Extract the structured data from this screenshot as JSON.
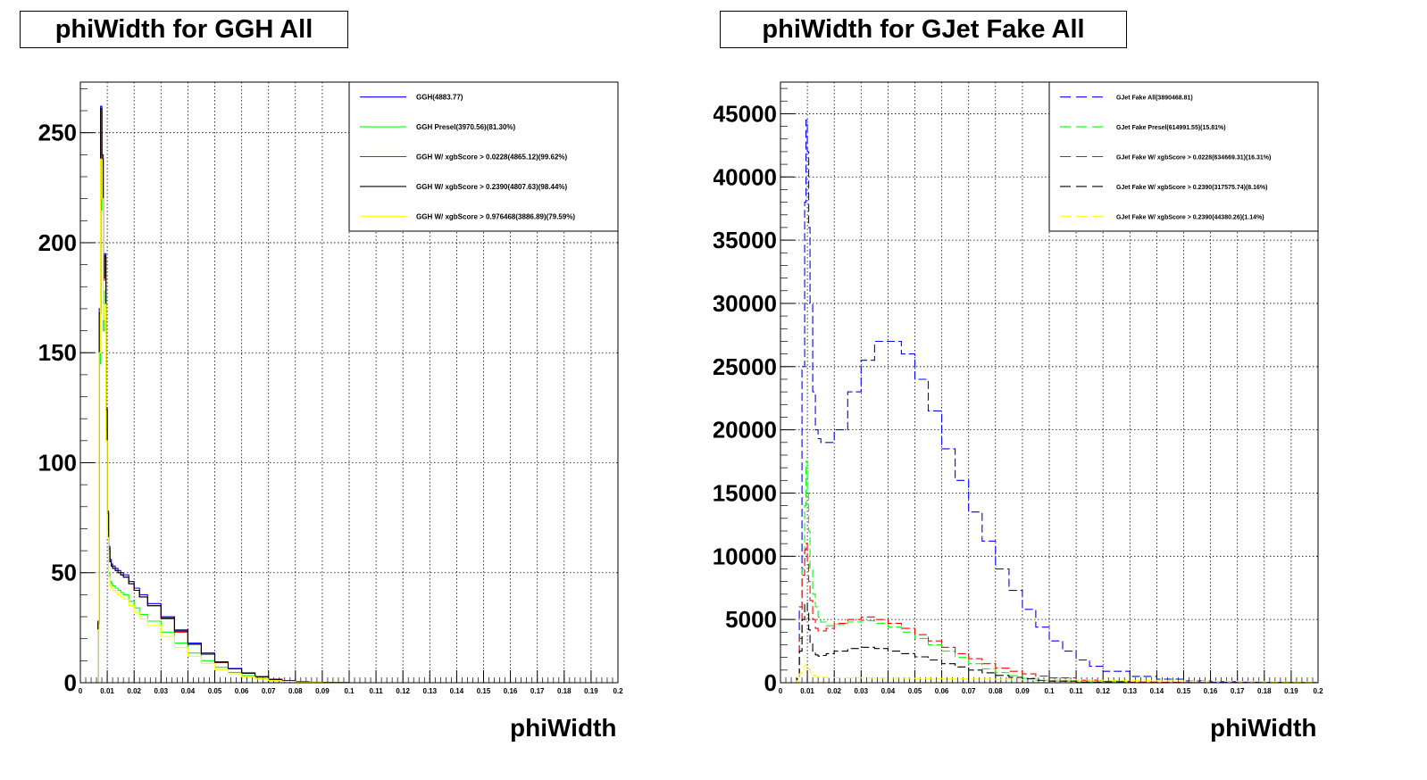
{
  "chart_data": [
    {
      "type": "line",
      "title": "phiWidth for GGH All",
      "xlabel": "phiWidth",
      "ylabel": "",
      "xlim": [
        0,
        0.2
      ],
      "ylim": [
        0,
        273
      ],
      "grid": true,
      "legend_position": "top-right",
      "xticks": [
        "0",
        "0.01",
        "0.02",
        "0.03",
        "0.04",
        "0.05",
        "0.06",
        "0.07",
        "0.08",
        "0.09",
        "0.1",
        "0.11",
        "0.12",
        "0.13",
        "0.14",
        "0.15",
        "0.16",
        "0.17",
        "0.18",
        "0.19",
        "0.2"
      ],
      "yticks": [
        "0",
        "50",
        "100",
        "150",
        "200",
        "250"
      ],
      "series": [
        {
          "name": "GGH(4883.77)",
          "color": "#0000ff",
          "dash": "solid",
          "x": [
            0.005,
            0.0055,
            0.006,
            0.0065,
            0.007,
            0.0075,
            0.008,
            0.0085,
            0.009,
            0.0095,
            0.01,
            0.0105,
            0.011,
            0.0115,
            0.012,
            0.013,
            0.014,
            0.015,
            0.016,
            0.018,
            0.02,
            0.022,
            0.025,
            0.03,
            0.035,
            0.04,
            0.045,
            0.05,
            0.055,
            0.06,
            0.065,
            0.07,
            0.075,
            0.08,
            0.085,
            0.09,
            0.095,
            0.1
          ],
          "y": [
            0,
            0,
            0,
            28,
            170,
            262,
            240,
            185,
            195,
            125,
            78,
            62,
            56,
            54,
            53,
            52,
            51,
            50,
            49,
            46,
            43,
            40,
            36,
            30,
            24,
            18,
            13.5,
            9.5,
            6.5,
            4.5,
            2.8,
            1.6,
            0.9,
            0.5,
            0.25,
            0.1,
            0.05,
            0
          ]
        },
        {
          "name": "GGH Presel(3970.56)(81.30%)",
          "color": "#00ff00",
          "dash": "solid",
          "x": [
            0.005,
            0.0055,
            0.006,
            0.0065,
            0.007,
            0.0075,
            0.008,
            0.0085,
            0.009,
            0.0095,
            0.01,
            0.0105,
            0.011,
            0.0115,
            0.012,
            0.013,
            0.014,
            0.015,
            0.016,
            0.018,
            0.02,
            0.022,
            0.025,
            0.03,
            0.035,
            0.04,
            0.045,
            0.05,
            0.055,
            0.06,
            0.065,
            0.07,
            0.075,
            0.08,
            0.085,
            0.09,
            0.095,
            0.1
          ],
          "y": [
            0,
            0,
            0,
            25,
            145,
            228,
            215,
            160,
            178,
            115,
            70,
            50,
            46,
            45,
            44,
            43,
            42,
            41,
            40,
            37,
            34,
            31,
            28,
            23,
            18,
            13.5,
            10,
            7,
            4.7,
            3.2,
            2,
            1.2,
            0.7,
            0.4,
            0.2,
            0.08,
            0.03,
            0
          ]
        },
        {
          "name": "GGH W/ xgbScore > 0.0228(4865.12)(99.62%)",
          "color": "#ff0000",
          "dash": "solid",
          "x": [
            0.005,
            0.0055,
            0.006,
            0.0065,
            0.007,
            0.0075,
            0.008,
            0.0085,
            0.009,
            0.0095,
            0.01,
            0.0105,
            0.011,
            0.0115,
            0.012,
            0.013,
            0.014,
            0.015,
            0.016,
            0.018,
            0.02,
            0.022,
            0.025,
            0.03,
            0.035,
            0.04,
            0.045,
            0.05,
            0.055,
            0.06,
            0.065,
            0.07,
            0.075,
            0.08,
            0.085,
            0.09,
            0.095,
            0.1
          ],
          "y": [
            0,
            0,
            0,
            27,
            168,
            260,
            238,
            183,
            193,
            124,
            77,
            61,
            55,
            53,
            52,
            51,
            50,
            49,
            48,
            45,
            42,
            39,
            35,
            29,
            23,
            17.5,
            13,
            9.2,
            6.3,
            4.3,
            2.7,
            1.5,
            0.85,
            0.45,
            0.22,
            0.09,
            0.04,
            0
          ]
        },
        {
          "name": "GGH W/ xgbScore > 0.2390(4807.63)(98.44%)",
          "color": "#000000",
          "dash": "solid",
          "x": [
            0.005,
            0.0055,
            0.006,
            0.0065,
            0.007,
            0.0075,
            0.008,
            0.0085,
            0.009,
            0.0095,
            0.01,
            0.0105,
            0.011,
            0.0115,
            0.012,
            0.013,
            0.014,
            0.015,
            0.016,
            0.018,
            0.02,
            0.022,
            0.025,
            0.03,
            0.035,
            0.04,
            0.045,
            0.05,
            0.055,
            0.06,
            0.065,
            0.07,
            0.075,
            0.08,
            0.085,
            0.09,
            0.095,
            0.1
          ],
          "y": [
            0,
            0,
            0,
            27,
            168,
            261,
            238,
            184,
            194,
            124,
            77,
            61,
            55,
            53,
            52,
            51,
            50,
            49,
            48,
            45,
            42,
            39,
            35,
            29.5,
            23.5,
            17.5,
            13,
            9.3,
            6.3,
            4.3,
            2.7,
            1.5,
            0.85,
            0.45,
            0.22,
            0.09,
            0.04,
            0
          ]
        },
        {
          "name": "GGH W/ xgbScore > 0.976468(3886.89)(79.59%)",
          "color": "#ffff00",
          "dash": "solid",
          "x": [
            0.005,
            0.0055,
            0.006,
            0.0065,
            0.007,
            0.0075,
            0.008,
            0.0085,
            0.009,
            0.0095,
            0.01,
            0.0105,
            0.011,
            0.0115,
            0.012,
            0.013,
            0.014,
            0.015,
            0.016,
            0.018,
            0.02,
            0.022,
            0.025,
            0.03,
            0.035,
            0.04,
            0.045,
            0.05,
            0.055,
            0.06,
            0.065,
            0.07,
            0.075,
            0.08,
            0.085,
            0.09,
            0.095,
            0.1
          ],
          "y": [
            0,
            0,
            0,
            24,
            150,
            238,
            220,
            165,
            172,
            110,
            66,
            48,
            44,
            43,
            42,
            41,
            40,
            39,
            38,
            35,
            32,
            29,
            26,
            21,
            16,
            12,
            8.7,
            6,
            4,
            2.7,
            1.7,
            1,
            0.6,
            0.3,
            0.15,
            0.06,
            0.02,
            0
          ]
        }
      ]
    },
    {
      "type": "line",
      "title": "phiWidth for GJet Fake All",
      "xlabel": "phiWidth",
      "ylabel": "",
      "xlim": [
        0,
        0.2
      ],
      "ylim": [
        0,
        47500
      ],
      "grid": true,
      "legend_position": "top-right",
      "xticks": [
        "0",
        "0.01",
        "0.02",
        "0.03",
        "0.04",
        "0.05",
        "0.06",
        "0.07",
        "0.08",
        "0.09",
        "0.1",
        "0.11",
        "0.12",
        "0.13",
        "0.14",
        "0.15",
        "0.16",
        "0.17",
        "0.18",
        "0.19",
        "0.2"
      ],
      "yticks": [
        "0",
        "5000",
        "10000",
        "15000",
        "20000",
        "25000",
        "30000",
        "35000",
        "40000",
        "45000"
      ],
      "series": [
        {
          "name": "GJet Fake All(3890468.81)",
          "color": "#0000ff",
          "dash": "dashed",
          "x": [
            0.005,
            0.006,
            0.007,
            0.008,
            0.009,
            0.0095,
            0.01,
            0.0105,
            0.011,
            0.012,
            0.013,
            0.014,
            0.015,
            0.017,
            0.02,
            0.025,
            0.03,
            0.035,
            0.04,
            0.045,
            0.05,
            0.055,
            0.06,
            0.065,
            0.07,
            0.075,
            0.08,
            0.085,
            0.09,
            0.095,
            0.1,
            0.105,
            0.11,
            0.115,
            0.12,
            0.13,
            0.14,
            0.15,
            0.16,
            0.17,
            0.18,
            0.19,
            0.2
          ],
          "y": [
            0,
            500,
            6000,
            25000,
            38000,
            44500,
            42000,
            36000,
            30000,
            23000,
            20000,
            19300,
            19000,
            19000,
            20000,
            23000,
            25500,
            27000,
            27000,
            26000,
            24000,
            21500,
            18500,
            16000,
            13500,
            11200,
            9000,
            7300,
            5800,
            4400,
            3300,
            2500,
            1800,
            1300,
            900,
            500,
            280,
            150,
            80,
            40,
            20,
            10,
            5
          ]
        },
        {
          "name": "GJet Fake Presel(614991.55)(15.81%)",
          "color": "#00ff00",
          "dash": "dashed",
          "x": [
            0.005,
            0.006,
            0.007,
            0.008,
            0.009,
            0.0095,
            0.01,
            0.0105,
            0.011,
            0.012,
            0.013,
            0.014,
            0.015,
            0.017,
            0.02,
            0.025,
            0.03,
            0.035,
            0.04,
            0.045,
            0.05,
            0.055,
            0.06,
            0.065,
            0.07,
            0.075,
            0.08,
            0.085,
            0.09,
            0.095,
            0.1,
            0.11,
            0.12,
            0.13,
            0.14,
            0.15,
            0.2
          ],
          "y": [
            0,
            300,
            2500,
            9000,
            14000,
            17500,
            15000,
            12000,
            9000,
            7000,
            6000,
            5200,
            4800,
            4500,
            4600,
            4800,
            4900,
            4700,
            4400,
            4000,
            3500,
            3000,
            2500,
            2000,
            1500,
            1100,
            800,
            550,
            350,
            220,
            130,
            50,
            20,
            8,
            3,
            1,
            0
          ]
        },
        {
          "name": "GJet Fake W/ xgbScore > 0.0228(634669.31)(16.31%)",
          "color": "#ff0000",
          "dash": "dashed",
          "x": [
            0.005,
            0.006,
            0.007,
            0.008,
            0.009,
            0.0095,
            0.01,
            0.0105,
            0.011,
            0.012,
            0.013,
            0.014,
            0.015,
            0.017,
            0.02,
            0.025,
            0.03,
            0.035,
            0.04,
            0.045,
            0.05,
            0.055,
            0.06,
            0.065,
            0.07,
            0.075,
            0.08,
            0.085,
            0.09,
            0.095,
            0.1,
            0.11,
            0.12,
            0.13,
            0.14,
            0.15,
            0.16,
            0.2
          ],
          "y": [
            0,
            400,
            3500,
            8500,
            10500,
            11000,
            9500,
            8000,
            6500,
            5000,
            4300,
            4100,
            4100,
            4300,
            4700,
            5000,
            5200,
            5000,
            4700,
            4300,
            3800,
            3300,
            2800,
            2300,
            1900,
            1500,
            1150,
            900,
            700,
            520,
            380,
            200,
            100,
            50,
            25,
            12,
            5,
            0
          ]
        },
        {
          "name": "GJet Fake W/ xgbScore > 0.2390(317575.74)(8.16%)",
          "color": "#000000",
          "dash": "dashed",
          "x": [
            0.005,
            0.006,
            0.007,
            0.008,
            0.009,
            0.0095,
            0.01,
            0.0105,
            0.011,
            0.012,
            0.013,
            0.014,
            0.015,
            0.017,
            0.02,
            0.025,
            0.03,
            0.035,
            0.04,
            0.045,
            0.05,
            0.055,
            0.06,
            0.065,
            0.07,
            0.075,
            0.08,
            0.085,
            0.09,
            0.095,
            0.1,
            0.11,
            0.12,
            0.13,
            0.2
          ],
          "y": [
            0,
            300,
            2500,
            5000,
            6200,
            6300,
            5500,
            4200,
            3200,
            2500,
            2200,
            2100,
            2150,
            2300,
            2500,
            2700,
            2800,
            2700,
            2500,
            2300,
            2050,
            1800,
            1500,
            1250,
            1000,
            780,
            580,
            420,
            300,
            200,
            130,
            50,
            20,
            8,
            0
          ]
        },
        {
          "name": "GJet Fake W/ xgbScore > 0.2390(44380.26)(1.14%)",
          "color": "#ffff00",
          "dash": "dashed",
          "x": [
            0.005,
            0.006,
            0.007,
            0.008,
            0.009,
            0.0095,
            0.01,
            0.011,
            0.012,
            0.013,
            0.014,
            0.015,
            0.017,
            0.02,
            0.025,
            0.03,
            0.035,
            0.04,
            0.05,
            0.06,
            0.07,
            0.08,
            0.09,
            0.1,
            0.11,
            0.12,
            0.13,
            0.14,
            0.15,
            0.16,
            0.17,
            0.18,
            0.19,
            0.2
          ],
          "y": [
            0,
            150,
            700,
            1200,
            1400,
            1300,
            1100,
            800,
            600,
            500,
            450,
            420,
            400,
            390,
            380,
            370,
            360,
            350,
            330,
            310,
            290,
            270,
            250,
            230,
            210,
            190,
            170,
            150,
            130,
            110,
            90,
            70,
            50,
            30
          ]
        }
      ]
    }
  ]
}
